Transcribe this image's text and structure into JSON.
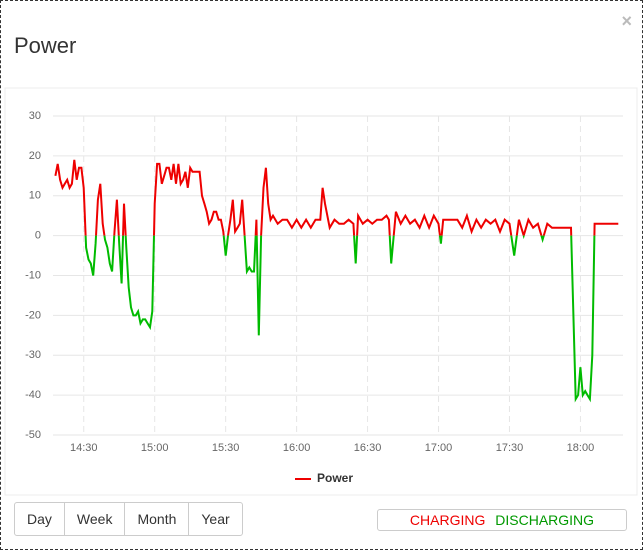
{
  "modal": {
    "title": "Power",
    "close": "×"
  },
  "chart_data": {
    "type": "line",
    "legend": true,
    "legend_position": "bottom",
    "grid": true,
    "x": [
      "14:18",
      "14:19",
      "14:20",
      "14:21",
      "14:22",
      "14:23",
      "14:24",
      "14:25",
      "14:26",
      "14:27",
      "14:28",
      "14:29",
      "14:30",
      "14:31",
      "14:32",
      "14:33",
      "14:34",
      "14:35",
      "14:36",
      "14:37",
      "14:38",
      "14:39",
      "14:40",
      "14:41",
      "14:42",
      "14:43",
      "14:44",
      "14:45",
      "14:46",
      "14:47",
      "14:48",
      "14:49",
      "14:50",
      "14:51",
      "14:52",
      "14:53",
      "14:54",
      "14:55",
      "14:56",
      "14:57",
      "14:58",
      "14:59",
      "15:00",
      "15:01",
      "15:02",
      "15:03",
      "15:04",
      "15:05",
      "15:06",
      "15:07",
      "15:08",
      "15:09",
      "15:10",
      "15:11",
      "15:12",
      "15:13",
      "15:14",
      "15:15",
      "15:16",
      "15:17",
      "15:18",
      "15:19",
      "15:20",
      "15:21",
      "15:22",
      "15:23",
      "15:24",
      "15:25",
      "15:26",
      "15:27",
      "15:28",
      "15:29",
      "15:30",
      "15:31",
      "15:32",
      "15:33",
      "15:34",
      "15:35",
      "15:36",
      "15:37",
      "15:38",
      "15:39",
      "15:40",
      "15:41",
      "15:42",
      "15:43",
      "15:44",
      "15:45",
      "15:46",
      "15:47",
      "15:48",
      "15:49",
      "15:50",
      "15:52",
      "15:54",
      "15:56",
      "15:58",
      "16:00",
      "16:02",
      "16:04",
      "16:06",
      "16:08",
      "16:10",
      "16:11",
      "16:12",
      "16:14",
      "16:16",
      "16:18",
      "16:20",
      "16:22",
      "16:24",
      "16:25",
      "16:26",
      "16:28",
      "16:30",
      "16:32",
      "16:34",
      "16:36",
      "16:38",
      "16:39",
      "16:40",
      "16:42",
      "16:44",
      "16:46",
      "16:48",
      "16:50",
      "16:52",
      "16:54",
      "16:56",
      "16:58",
      "17:00",
      "17:01",
      "17:02",
      "17:04",
      "17:06",
      "17:08",
      "17:10",
      "17:12",
      "17:14",
      "17:16",
      "17:18",
      "17:20",
      "17:22",
      "17:24",
      "17:26",
      "17:28",
      "17:30",
      "17:32",
      "17:34",
      "17:36",
      "17:38",
      "17:40",
      "17:42",
      "17:44",
      "17:46",
      "17:48",
      "17:50",
      "17:52",
      "17:54",
      "17:56",
      "17:58",
      "17:59",
      "18:00",
      "18:01",
      "18:02",
      "18:03",
      "18:04",
      "18:05",
      "18:06",
      "18:08",
      "18:10",
      "18:12",
      "18:14",
      "18:16"
    ],
    "series": [
      {
        "name": "Power",
        "color": "#ee0000",
        "negative_color": "#00bb00",
        "values": [
          15,
          18,
          14,
          12,
          13,
          14,
          12,
          13,
          19,
          14,
          17,
          17,
          12,
          -3,
          -6,
          -7,
          -10,
          -2,
          9,
          13,
          3,
          -1,
          -3,
          -7,
          -9,
          1,
          9,
          -2,
          -12,
          8,
          -3,
          -13,
          -18,
          -20,
          -20,
          -19,
          -22,
          -21,
          -21,
          -22,
          -23,
          -19,
          8,
          18,
          18,
          13,
          15,
          17,
          17,
          14,
          18,
          13,
          18,
          13,
          14,
          16,
          12,
          17,
          16,
          16,
          16,
          16,
          10,
          8,
          6,
          3,
          4,
          6,
          6,
          4,
          4,
          1,
          -5,
          0,
          4,
          9,
          1,
          2,
          3,
          9,
          0,
          -9,
          -8,
          -9,
          -9,
          4,
          -25,
          0,
          12,
          17,
          8,
          4,
          5,
          3,
          4,
          4,
          2,
          4,
          2,
          4,
          2,
          4,
          4,
          12,
          8,
          2,
          4,
          3,
          3,
          4,
          3,
          -7,
          5,
          3,
          4,
          3,
          4,
          4,
          5,
          4,
          -7,
          6,
          3,
          5,
          3,
          4,
          2,
          5,
          2,
          5,
          3,
          -2,
          4,
          4,
          4,
          4,
          2,
          5,
          1,
          4,
          2,
          4,
          3,
          4,
          1,
          4,
          3,
          -5,
          4,
          0,
          4,
          2,
          3,
          -1,
          3,
          2,
          2,
          2,
          2,
          2,
          -41,
          -40,
          -33,
          -40,
          -39,
          -40,
          -41,
          -30,
          3,
          3,
          3,
          3,
          3,
          3
        ]
      }
    ],
    "xlim": [
      "14:17",
      "18:18"
    ],
    "xticks": [
      "14:30",
      "15:00",
      "15:30",
      "16:00",
      "16:30",
      "17:00",
      "17:30",
      "18:00"
    ],
    "ylim": [
      -50,
      30
    ],
    "yticks": [
      -50,
      -40,
      -30,
      -20,
      -10,
      0,
      10,
      20,
      30
    ]
  },
  "buttons": [
    "Day",
    "Week",
    "Month",
    "Year"
  ],
  "status": {
    "charging": "CHARGING",
    "discharging": "DISCHARGING"
  }
}
